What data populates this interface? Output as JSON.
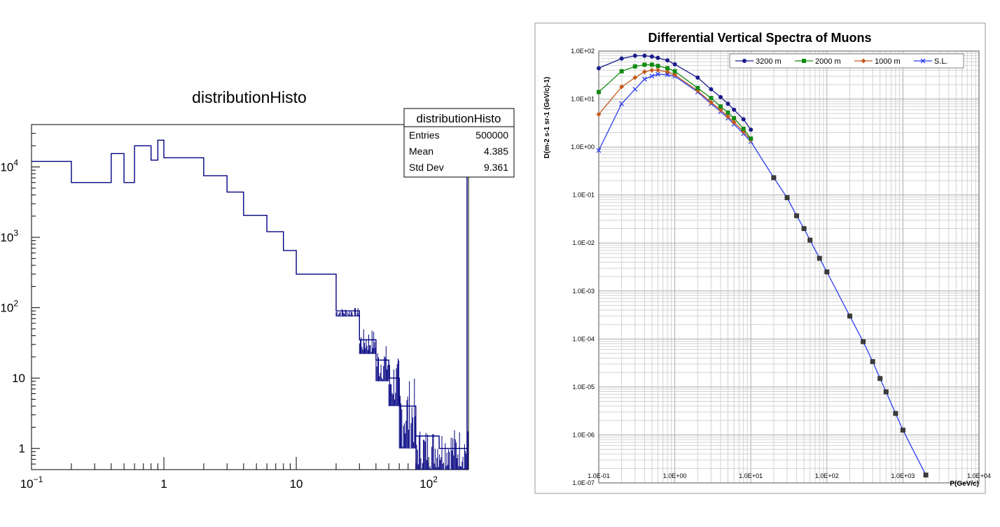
{
  "chart_data": [
    {
      "type": "histogram",
      "title": "distributionHisto",
      "xscale": "log",
      "yscale": "log",
      "xlim": [
        0.1,
        200
      ],
      "ylim": [
        0.5,
        40000
      ],
      "x_ticks": [
        {
          "value": 0.1,
          "base": "10",
          "exp": "−1"
        },
        {
          "value": 1,
          "base": "1",
          "exp": ""
        },
        {
          "value": 10,
          "base": "10",
          "exp": ""
        },
        {
          "value": 100,
          "base": "10",
          "exp": "2"
        }
      ],
      "y_ticks": [
        {
          "value": 1,
          "base": "1",
          "exp": ""
        },
        {
          "value": 10,
          "base": "10",
          "exp": ""
        },
        {
          "value": 100,
          "base": "10",
          "exp": "2"
        },
        {
          "value": 1000,
          "base": "10",
          "exp": "3"
        },
        {
          "value": 10000,
          "base": "10",
          "exp": "4"
        }
      ],
      "stats": {
        "title": "distributionHisto",
        "rows": [
          {
            "label": "Entries",
            "value": "500000"
          },
          {
            "label": "Mean",
            "value": "4.385"
          },
          {
            "label": "Std Dev",
            "value": "9.361"
          }
        ]
      },
      "line_color": "#000080",
      "segments": [
        {
          "x0": 0.1,
          "x1": 0.2,
          "y": 12000
        },
        {
          "x0": 0.2,
          "x1": 0.4,
          "y": 6000
        },
        {
          "x0": 0.4,
          "x1": 0.5,
          "y": 15500
        },
        {
          "x0": 0.5,
          "x1": 0.6,
          "y": 6000
        },
        {
          "x0": 0.6,
          "x1": 0.8,
          "y": 20000
        },
        {
          "x0": 0.8,
          "x1": 0.9,
          "y": 12500
        },
        {
          "x0": 0.9,
          "x1": 1.0,
          "y": 24000
        },
        {
          "x0": 1.0,
          "x1": 2.0,
          "y": 13500
        },
        {
          "x0": 2.0,
          "x1": 3.0,
          "y": 7500
        },
        {
          "x0": 3.0,
          "x1": 4.0,
          "y": 4400
        },
        {
          "x0": 4.0,
          "x1": 6.0,
          "y": 2050
        },
        {
          "x0": 6.0,
          "x1": 8.0,
          "y": 1200
        },
        {
          "x0": 8.0,
          "x1": 10.0,
          "y": 650
        },
        {
          "x0": 10.0,
          "x1": 20.0,
          "y": 300
        },
        {
          "x0": 20.0,
          "x1": 30.0,
          "y": 90
        },
        {
          "x0": 30.0,
          "x1": 40.0,
          "y": 35
        },
        {
          "x0": 40.0,
          "x1": 50.0,
          "y": 18
        },
        {
          "x0": 50.0,
          "x1": 60.0,
          "y": 10
        },
        {
          "x0": 60.0,
          "x1": 80.0,
          "y": 4
        },
        {
          "x0": 80.0,
          "x1": 120.0,
          "y": 1.5
        },
        {
          "x0": 120.0,
          "x1": 200.0,
          "y": 1
        }
      ],
      "noise": [
        {
          "x0": 20,
          "x1": 30,
          "lo": 75,
          "hi": 100
        },
        {
          "x0": 30,
          "x1": 40,
          "lo": 22,
          "hi": 50
        },
        {
          "x0": 40,
          "x1": 50,
          "lo": 9,
          "hi": 30
        },
        {
          "x0": 50,
          "x1": 60,
          "lo": 4,
          "hi": 20
        },
        {
          "x0": 60,
          "x1": 80,
          "lo": 1,
          "hi": 10
        },
        {
          "x0": 80,
          "x1": 200,
          "lo": 0.5,
          "hi": 2
        }
      ],
      "spike": {
        "x": 195,
        "y": 25000
      }
    },
    {
      "type": "line",
      "title": "Differential Vertical Spectra of Muons",
      "xlabel": "P(GeV/c)",
      "ylabel": "D(m-2 s-1 sr-1 (GeV/c)-1)",
      "xscale": "log",
      "yscale": "log",
      "xlim": [
        0.1,
        10000
      ],
      "ylim": [
        1e-07,
        100
      ],
      "grid": true,
      "legend_position": "top-right",
      "x_tick_labels": [
        "1.0E-01",
        "1.0E+00",
        "1.0E+01",
        "1.0E+02",
        "1.0E+03",
        "1.0E+04"
      ],
      "y_tick_labels": [
        "1.0E+02",
        "1.0E+01",
        "1.0E+00",
        "1.0E-01",
        "1.0E-02",
        "1.0E-03",
        "1.0E-04",
        "1.0E-05",
        "1.0E-06",
        "1.0E-07"
      ],
      "series": [
        {
          "name": "3200 m",
          "color": "#1a1a8c",
          "marker": "circle",
          "x": [
            0.1,
            0.2,
            0.3,
            0.4,
            0.5,
            0.6,
            0.8,
            1,
            2,
            3,
            4,
            5,
            6,
            8,
            10
          ],
          "y": [
            44,
            70,
            80,
            80,
            77,
            72,
            64,
            53,
            28,
            16,
            11,
            8,
            6,
            3.8,
            2.3
          ]
        },
        {
          "name": "2000 m",
          "color": "#138a13",
          "marker": "square",
          "x": [
            0.1,
            0.2,
            0.3,
            0.4,
            0.5,
            0.6,
            0.8,
            1,
            2,
            3,
            4,
            5,
            6,
            8,
            10
          ],
          "y": [
            14,
            38,
            48,
            52,
            52,
            49,
            44,
            38,
            17,
            10.5,
            7,
            5.2,
            4,
            2.4,
            1.5
          ]
        },
        {
          "name": "1000 m",
          "color": "#c25a1c",
          "marker": "diamond",
          "x": [
            0.1,
            0.2,
            0.3,
            0.4,
            0.5,
            0.6,
            0.8,
            1,
            2,
            3,
            4,
            5,
            6,
            8,
            10
          ],
          "y": [
            4.8,
            18,
            28,
            37,
            40,
            40,
            37,
            32,
            15,
            8.5,
            6,
            4.3,
            3.3,
            2.1,
            1.4
          ]
        },
        {
          "name": "S.L.",
          "color": "#2a3cf0",
          "marker": "x",
          "x": [
            0.1,
            0.2,
            0.3,
            0.4,
            0.5,
            0.6,
            0.8,
            1,
            2,
            3,
            4,
            5,
            6,
            8,
            10,
            20,
            30,
            40,
            50,
            60,
            80,
            100,
            200,
            300,
            400,
            500,
            600,
            800,
            1000,
            2000
          ],
          "y": [
            0.85,
            8,
            16,
            26,
            30,
            33,
            32,
            30,
            14,
            8,
            5.5,
            4,
            3,
            1.9,
            1.3,
            0.23,
            0.088,
            0.037,
            0.02,
            0.0115,
            0.0048,
            0.0025,
            0.0003,
            8.77e-05,
            3.38e-05,
            1.5e-05,
            7.9e-06,
            2.8e-06,
            1.26e-06,
            1.46e-07
          ]
        }
      ]
    }
  ]
}
